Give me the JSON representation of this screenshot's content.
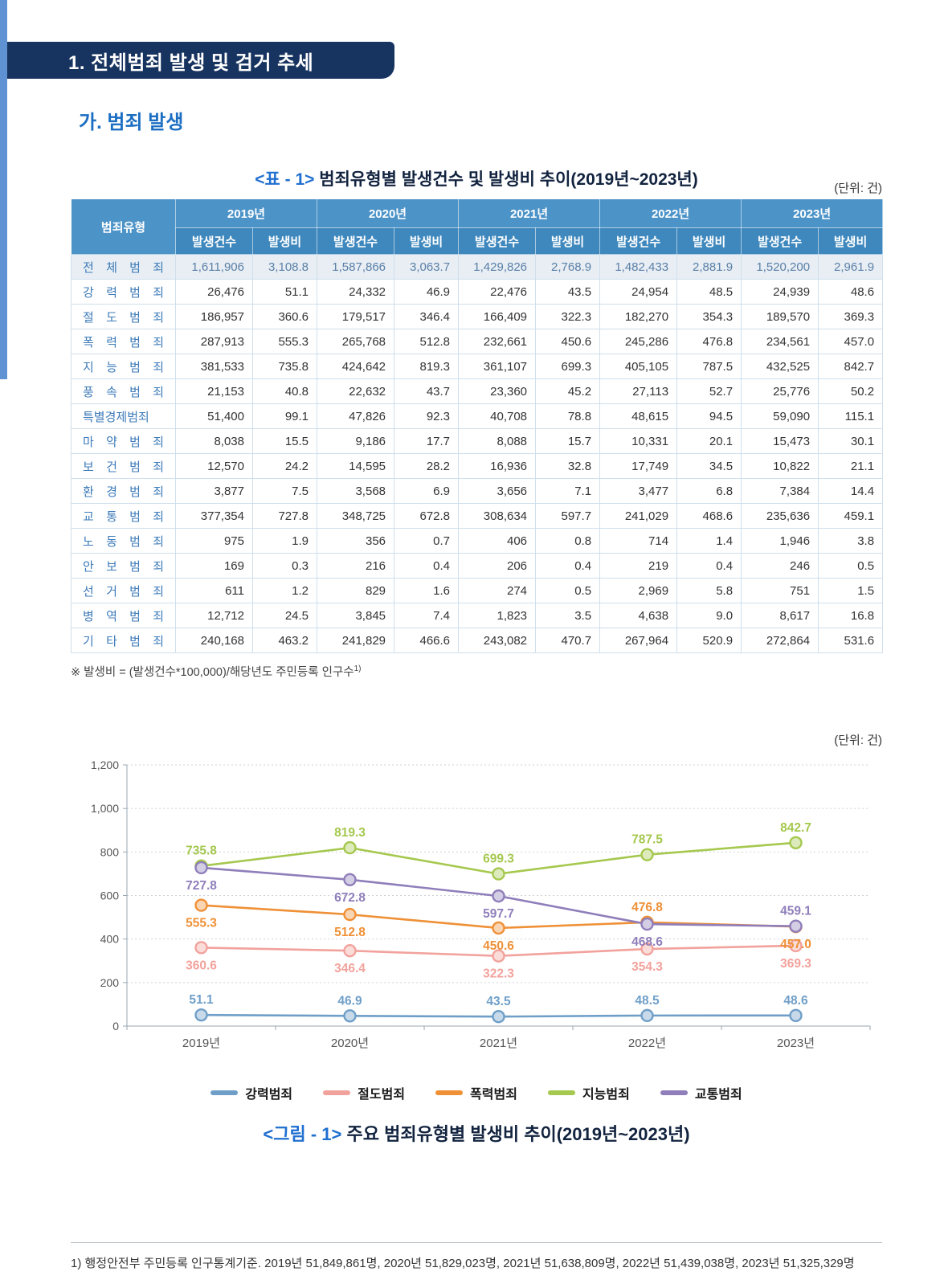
{
  "page": {
    "section_title": "1. 전체범죄 발생 및 검거 추세",
    "subsection_title": "가. 범죄 발생",
    "unit_label_table": "(단위: 건)",
    "unit_label_chart": "(단위: 건)",
    "table_caption_prefix": "<표 - 1>",
    "table_caption": " 범죄유형별 발생건수 및 발생비 추이(2019년~2023년)",
    "figure_caption_prefix": "<그림 - 1>",
    "figure_caption": " 주요 범죄유형별 발생비 추이(2019년~2023년)",
    "table_footnote": "※ 발생비 = (발생건수*100,000)/해당년도 주민등록 인구수",
    "table_footnote_sup": "1)",
    "page_footnote": "1) 행정안전부 주민등록 인구통계기준. 2019년 51,849,861명, 2020년 51,829,023명, 2021년 51,638,809명, 2022년 51,439,038명, 2023년 51,325,329명"
  },
  "table": {
    "corner_header": "범죄유형",
    "years": [
      "2019년",
      "2020년",
      "2021년",
      "2022년",
      "2023년"
    ],
    "sub_headers": [
      "발생건수",
      "발생비"
    ],
    "rows": [
      {
        "label": "전 체 범 죄",
        "highlight": true,
        "values": [
          "1,611,906",
          "3,108.8",
          "1,587,866",
          "3,063.7",
          "1,429,826",
          "2,768.9",
          "1,482,433",
          "2,881.9",
          "1,520,200",
          "2,961.9"
        ]
      },
      {
        "label": "강 력 범 죄",
        "highlight": false,
        "values": [
          "26,476",
          "51.1",
          "24,332",
          "46.9",
          "22,476",
          "43.5",
          "24,954",
          "48.5",
          "24,939",
          "48.6"
        ]
      },
      {
        "label": "절 도 범 죄",
        "highlight": false,
        "values": [
          "186,957",
          "360.6",
          "179,517",
          "346.4",
          "166,409",
          "322.3",
          "182,270",
          "354.3",
          "189,570",
          "369.3"
        ]
      },
      {
        "label": "폭 력 범 죄",
        "highlight": false,
        "values": [
          "287,913",
          "555.3",
          "265,768",
          "512.8",
          "232,661",
          "450.6",
          "245,286",
          "476.8",
          "234,561",
          "457.0"
        ]
      },
      {
        "label": "지 능 범 죄",
        "highlight": false,
        "values": [
          "381,533",
          "735.8",
          "424,642",
          "819.3",
          "361,107",
          "699.3",
          "405,105",
          "787.5",
          "432,525",
          "842.7"
        ]
      },
      {
        "label": "풍 속 범 죄",
        "highlight": false,
        "values": [
          "21,153",
          "40.8",
          "22,632",
          "43.7",
          "23,360",
          "45.2",
          "27,113",
          "52.7",
          "25,776",
          "50.2"
        ]
      },
      {
        "label": "특별경제범죄",
        "highlight": false,
        "values": [
          "51,400",
          "99.1",
          "47,826",
          "92.3",
          "40,708",
          "78.8",
          "48,615",
          "94.5",
          "59,090",
          "115.1"
        ]
      },
      {
        "label": "마 약 범 죄",
        "highlight": false,
        "values": [
          "8,038",
          "15.5",
          "9,186",
          "17.7",
          "8,088",
          "15.7",
          "10,331",
          "20.1",
          "15,473",
          "30.1"
        ]
      },
      {
        "label": "보 건 범 죄",
        "highlight": false,
        "values": [
          "12,570",
          "24.2",
          "14,595",
          "28.2",
          "16,936",
          "32.8",
          "17,749",
          "34.5",
          "10,822",
          "21.1"
        ]
      },
      {
        "label": "환 경 범 죄",
        "highlight": false,
        "values": [
          "3,877",
          "7.5",
          "3,568",
          "6.9",
          "3,656",
          "7.1",
          "3,477",
          "6.8",
          "7,384",
          "14.4"
        ]
      },
      {
        "label": "교 통 범 죄",
        "highlight": false,
        "values": [
          "377,354",
          "727.8",
          "348,725",
          "672.8",
          "308,634",
          "597.7",
          "241,029",
          "468.6",
          "235,636",
          "459.1"
        ]
      },
      {
        "label": "노 동 범 죄",
        "highlight": false,
        "values": [
          "975",
          "1.9",
          "356",
          "0.7",
          "406",
          "0.8",
          "714",
          "1.4",
          "1,946",
          "3.8"
        ]
      },
      {
        "label": "안 보 범 죄",
        "highlight": false,
        "values": [
          "169",
          "0.3",
          "216",
          "0.4",
          "206",
          "0.4",
          "219",
          "0.4",
          "246",
          "0.5"
        ]
      },
      {
        "label": "선 거 범 죄",
        "highlight": false,
        "values": [
          "611",
          "1.2",
          "829",
          "1.6",
          "274",
          "0.5",
          "2,969",
          "5.8",
          "751",
          "1.5"
        ]
      },
      {
        "label": "병 역 범 죄",
        "highlight": false,
        "values": [
          "12,712",
          "24.5",
          "3,845",
          "7.4",
          "1,823",
          "3.5",
          "4,638",
          "9.0",
          "8,617",
          "16.8"
        ]
      },
      {
        "label": "기 타 범 죄",
        "highlight": false,
        "values": [
          "240,168",
          "463.2",
          "241,829",
          "466.6",
          "243,082",
          "470.7",
          "267,964",
          "520.9",
          "272,864",
          "531.6"
        ]
      }
    ]
  },
  "chart_data": {
    "type": "line",
    "title": "주요 범죄유형별 발생비 추이(2019년~2023년)",
    "categories": [
      "2019년",
      "2020년",
      "2021년",
      "2022년",
      "2023년"
    ],
    "series": [
      {
        "name": "강력범죄",
        "color": "#6f9fc8",
        "values": [
          51.1,
          46.9,
          43.5,
          48.5,
          48.6
        ],
        "label_position": "above",
        "label_overrides": {}
      },
      {
        "name": "절도범죄",
        "color": "#f2a29c",
        "values": [
          360.6,
          346.4,
          322.3,
          354.3,
          369.3
        ],
        "label_position": "below",
        "label_overrides": {}
      },
      {
        "name": "폭력범죄",
        "color": "#ef9036",
        "values": [
          555.3,
          512.8,
          450.6,
          476.8,
          457.0
        ],
        "label_position": "below",
        "label_overrides": {
          "3": "above"
        }
      },
      {
        "name": "지능범죄",
        "color": "#a5c84e",
        "values": [
          735.8,
          819.3,
          699.3,
          787.5,
          842.7
        ],
        "label_position": "above",
        "label_overrides": {}
      },
      {
        "name": "교통범죄",
        "color": "#8f7eba",
        "values": [
          727.8,
          672.8,
          597.7,
          468.6,
          459.1
        ],
        "label_position": "below",
        "label_overrides": {
          "4": "above"
        }
      }
    ],
    "xlabel": "",
    "ylabel": "",
    "ylim": [
      0,
      1200
    ],
    "ytick_step": 200,
    "grid": true,
    "legend_position": "bottom"
  }
}
